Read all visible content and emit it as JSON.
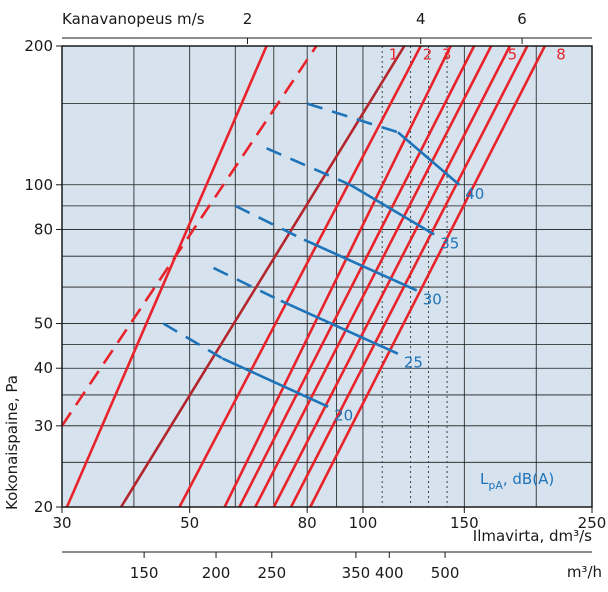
{
  "chart_data": {
    "type": "line",
    "x_scale": "log",
    "y_scale": "log",
    "grid": true,
    "xlabel": "Ilmavirta, dm³/s",
    "ylabel": "Kokonaispaine, Pa",
    "top_axis_label": "Kanavanopeus m/s",
    "bottom2_axis_label": "m³/h",
    "xlim": [
      30,
      250
    ],
    "ylim": [
      20,
      200
    ],
    "x_ticks": [
      "30",
      "50",
      "80",
      "100",
      "150",
      "250"
    ],
    "y_ticks": [
      "20",
      "30",
      "40",
      "50",
      "80",
      "100",
      "200"
    ],
    "top_ticks": [
      {
        "label": "2",
        "dm3s": 63
      },
      {
        "label": "4",
        "dm3s": 126
      },
      {
        "label": "6",
        "dm3s": 189
      }
    ],
    "m3h_ticks": [
      "150",
      "200",
      "250",
      "350",
      "400",
      "500"
    ],
    "lpa_label": "L",
    "lpa_sub": "pA",
    "lpa_suffix": ", dB(A)",
    "colors": {
      "red": "#e8232b",
      "dark_red": "#b3262d",
      "blue": "#1f73b8",
      "plot_bg": "#d6e3ee",
      "grid": "#1a1a1a"
    },
    "series": [
      {
        "name": "1",
        "style": "solid",
        "points": [
          [
            68,
            200
          ],
          [
            30.6,
            20
          ]
        ]
      },
      {
        "name": "2",
        "style": "solid",
        "points": [
          [
            126,
            200
          ],
          [
            48,
            20
          ]
        ]
      },
      {
        "name": "3",
        "style": "solid",
        "points": [
          [
            142,
            200
          ],
          [
            57.5,
            20
          ]
        ]
      },
      {
        "name": "4",
        "style": "solid",
        "points": [
          [
            156,
            200
          ],
          [
            61,
            20
          ]
        ]
      },
      {
        "name": "5",
        "style": "solid",
        "points": [
          [
            167,
            200
          ],
          [
            65,
            20
          ]
        ]
      },
      {
        "name": "6",
        "style": "solid",
        "points": [
          [
            180,
            200
          ],
          [
            70,
            20
          ]
        ]
      },
      {
        "name": "7",
        "style": "solid",
        "points": [
          [
            193,
            200
          ],
          [
            75,
            20
          ]
        ]
      },
      {
        "name": "8",
        "style": "solid",
        "points": [
          [
            207,
            200
          ],
          [
            81,
            20
          ]
        ]
      },
      {
        "style": "dashed",
        "points": [
          [
            30,
            30
          ],
          [
            83,
            200
          ]
        ]
      },
      {
        "style": "dark",
        "points": [
          [
            38,
            20
          ],
          [
            118,
            200
          ]
        ]
      }
    ],
    "red_labels": [
      {
        "text": "1",
        "x": 110,
        "y": 187
      },
      {
        "text": "2",
        "x": 126,
        "y": 187
      },
      {
        "text": "3",
        "x": 136,
        "y": 187
      },
      {
        "text": "5",
        "x": 177,
        "y": 187
      },
      {
        "text": "8",
        "x": 215,
        "y": 187
      }
    ],
    "noise_lines": [
      {
        "value": "20",
        "solid": [
          [
            57,
            42
          ],
          [
            87,
            33
          ]
        ],
        "dashed": [
          [
            45,
            50
          ],
          [
            57,
            42
          ]
        ]
      },
      {
        "value": "25",
        "solid": [
          [
            72,
            56
          ],
          [
            115,
            43
          ]
        ],
        "dashed": [
          [
            55,
            66
          ],
          [
            72,
            56
          ]
        ]
      },
      {
        "value": "30",
        "solid": [
          [
            79,
            76
          ],
          [
            124,
            59
          ]
        ],
        "dashed": [
          [
            60,
            90
          ],
          [
            79,
            76
          ]
        ]
      },
      {
        "value": "35",
        "solid": [
          [
            95,
            100
          ],
          [
            133,
            78
          ]
        ],
        "dashed": [
          [
            68,
            120
          ],
          [
            95,
            100
          ]
        ]
      },
      {
        "value": "40",
        "solid": [
          [
            115,
            130
          ],
          [
            147,
            100
          ]
        ],
        "dashed": [
          [
            80,
            150
          ],
          [
            115,
            130
          ]
        ]
      }
    ],
    "vertical_dotted_dm3s": [
      108,
      121,
      130,
      140
    ]
  }
}
